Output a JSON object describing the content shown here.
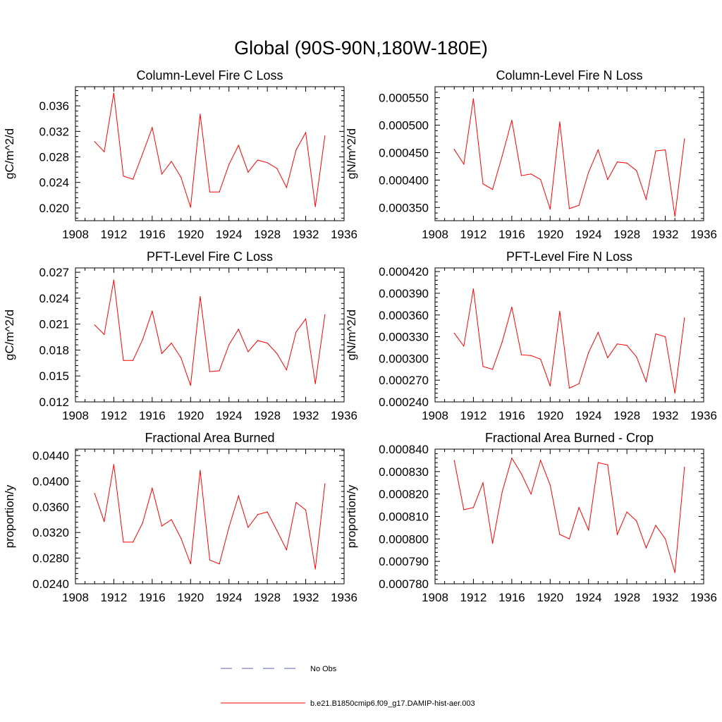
{
  "title": "Global (90S-90N,180W-180E)",
  "legend": [
    {
      "label": "No Obs",
      "color": "#5a63b8",
      "dash": true
    },
    {
      "label": "b.e21.B1850cmip6.f09_g17.DAMIP-hist-aer.003",
      "color": "#ff0000",
      "dash": false
    }
  ],
  "chart_data": [
    {
      "type": "line",
      "title": "Column-Level Fire C Loss",
      "ylabel": "gC/m^2/d",
      "xlim": [
        1908,
        1936
      ],
      "xticks": [
        1908,
        1912,
        1916,
        1920,
        1924,
        1928,
        1932,
        1936
      ],
      "ylim": [
        0.018,
        0.039
      ],
      "yticks": [
        0.02,
        0.024,
        0.028,
        0.032,
        0.036
      ],
      "ydecimals": 3,
      "color": "#ff0000",
      "x": [
        1910,
        1911,
        1912,
        1913,
        1914,
        1915,
        1916,
        1917,
        1918,
        1919,
        1920,
        1921,
        1922,
        1923,
        1924,
        1925,
        1926,
        1927,
        1928,
        1929,
        1930,
        1931,
        1932,
        1933,
        1934
      ],
      "values": [
        0.0304,
        0.0288,
        0.038,
        0.025,
        0.0245,
        0.0285,
        0.0326,
        0.0253,
        0.0273,
        0.0248,
        0.0201,
        0.0347,
        0.0225,
        0.0225,
        0.0268,
        0.0298,
        0.0256,
        0.0275,
        0.0271,
        0.0262,
        0.0232,
        0.0291,
        0.0318,
        0.0202,
        0.0313
      ]
    },
    {
      "type": "line",
      "title": "Column-Level Fire N Loss",
      "ylabel": "gN/m^2/d",
      "xlim": [
        1908,
        1936
      ],
      "xticks": [
        1908,
        1912,
        1916,
        1920,
        1924,
        1928,
        1932,
        1936
      ],
      "ylim": [
        0.000326,
        0.00057
      ],
      "yticks": [
        0.00035,
        0.0004,
        0.00045,
        0.0005,
        0.00055
      ],
      "ydecimals": 6,
      "color": "#ff0000",
      "x": [
        1910,
        1911,
        1912,
        1913,
        1914,
        1915,
        1916,
        1917,
        1918,
        1919,
        1920,
        1921,
        1922,
        1923,
        1924,
        1925,
        1926,
        1927,
        1928,
        1929,
        1930,
        1931,
        1932,
        1933,
        1934
      ],
      "values": [
        0.000456,
        0.000429,
        0.000548,
        0.000393,
        0.000383,
        0.000444,
        0.000509,
        0.000408,
        0.000411,
        0.000401,
        0.000347,
        0.000506,
        0.000348,
        0.000354,
        0.000414,
        0.000455,
        0.000401,
        0.000433,
        0.000431,
        0.000417,
        0.000365,
        0.000453,
        0.000455,
        0.000334,
        0.000475
      ]
    },
    {
      "type": "line",
      "title": "PFT-Level Fire C Loss",
      "ylabel": "gC/m^2/d",
      "xlim": [
        1908,
        1936
      ],
      "xticks": [
        1908,
        1912,
        1916,
        1920,
        1924,
        1928,
        1932,
        1936
      ],
      "ylim": [
        0.012,
        0.0275
      ],
      "yticks": [
        0.012,
        0.015,
        0.018,
        0.021,
        0.024,
        0.027
      ],
      "ydecimals": 3,
      "color": "#ff0000",
      "x": [
        1910,
        1911,
        1912,
        1913,
        1914,
        1915,
        1916,
        1917,
        1918,
        1919,
        1920,
        1921,
        1922,
        1923,
        1924,
        1925,
        1926,
        1927,
        1928,
        1929,
        1930,
        1931,
        1932,
        1933,
        1934
      ],
      "values": [
        0.0209,
        0.0198,
        0.0261,
        0.0168,
        0.0168,
        0.0192,
        0.0225,
        0.0176,
        0.0188,
        0.0171,
        0.0139,
        0.0242,
        0.0155,
        0.0156,
        0.0186,
        0.0204,
        0.0178,
        0.0191,
        0.0188,
        0.0176,
        0.0157,
        0.0201,
        0.0216,
        0.0141,
        0.0221
      ]
    },
    {
      "type": "line",
      "title": "PFT-Level Fire N Loss",
      "ylabel": "gN/m^2/d",
      "xlim": [
        1908,
        1936
      ],
      "xticks": [
        1908,
        1912,
        1916,
        1920,
        1924,
        1928,
        1932,
        1936
      ],
      "ylim": [
        0.00024,
        0.000425
      ],
      "yticks": [
        0.00024,
        0.00027,
        0.0003,
        0.00033,
        0.00036,
        0.00039,
        0.00042
      ],
      "ydecimals": 6,
      "color": "#ff0000",
      "x": [
        1910,
        1911,
        1912,
        1913,
        1914,
        1915,
        1916,
        1917,
        1918,
        1919,
        1920,
        1921,
        1922,
        1923,
        1924,
        1925,
        1926,
        1927,
        1928,
        1929,
        1930,
        1931,
        1932,
        1933,
        1934
      ],
      "values": [
        0.000335,
        0.000317,
        0.000396,
        0.000289,
        0.000285,
        0.000323,
        0.000371,
        0.000305,
        0.000304,
        0.000299,
        0.000262,
        0.000365,
        0.000259,
        0.000265,
        0.000308,
        0.000336,
        0.000301,
        0.00032,
        0.000318,
        0.000302,
        0.000268,
        0.000334,
        0.00033,
        0.000252,
        0.000356
      ]
    },
    {
      "type": "line",
      "title": "Fractional Area Burned",
      "ylabel": "proportion/y",
      "xlim": [
        1908,
        1936
      ],
      "xticks": [
        1908,
        1912,
        1916,
        1920,
        1924,
        1928,
        1932,
        1936
      ],
      "ylim": [
        0.024,
        0.045
      ],
      "yticks": [
        0.024,
        0.028,
        0.032,
        0.036,
        0.04,
        0.044
      ],
      "ydecimals": 4,
      "color": "#ff0000",
      "x": [
        1910,
        1911,
        1912,
        1913,
        1914,
        1915,
        1916,
        1917,
        1918,
        1919,
        1920,
        1921,
        1922,
        1923,
        1924,
        1925,
        1926,
        1927,
        1928,
        1929,
        1930,
        1931,
        1932,
        1933,
        1934
      ],
      "values": [
        0.0381,
        0.0337,
        0.0426,
        0.0305,
        0.0305,
        0.0335,
        0.0389,
        0.033,
        0.034,
        0.0311,
        0.0271,
        0.0417,
        0.0277,
        0.0271,
        0.0328,
        0.0377,
        0.0328,
        0.0348,
        0.0352,
        0.0323,
        0.0293,
        0.0367,
        0.0355,
        0.0263,
        0.0396
      ]
    },
    {
      "type": "line",
      "title": "Fractional Area Burned - Crop",
      "ylabel": "proportion/y",
      "xlim": [
        1908,
        1936
      ],
      "xticks": [
        1908,
        1912,
        1916,
        1920,
        1924,
        1928,
        1932,
        1936
      ],
      "ylim": [
        0.00078,
        0.00084
      ],
      "yticks": [
        0.00078,
        0.00079,
        0.0008,
        0.00081,
        0.00082,
        0.00083,
        0.00084
      ],
      "ydecimals": 6,
      "color": "#ff0000",
      "x": [
        1910,
        1911,
        1912,
        1913,
        1914,
        1915,
        1916,
        1917,
        1918,
        1919,
        1920,
        1921,
        1922,
        1923,
        1924,
        1925,
        1926,
        1927,
        1928,
        1929,
        1930,
        1931,
        1932,
        1933,
        1934
      ],
      "values": [
        0.000835,
        0.000813,
        0.000814,
        0.000825,
        0.000798,
        0.000821,
        0.000836,
        0.000829,
        0.00082,
        0.000835,
        0.000824,
        0.000802,
        0.0008,
        0.000814,
        0.000804,
        0.000834,
        0.000833,
        0.000802,
        0.000812,
        0.000808,
        0.000796,
        0.000806,
        0.0008,
        0.000785,
        0.000832
      ]
    }
  ]
}
